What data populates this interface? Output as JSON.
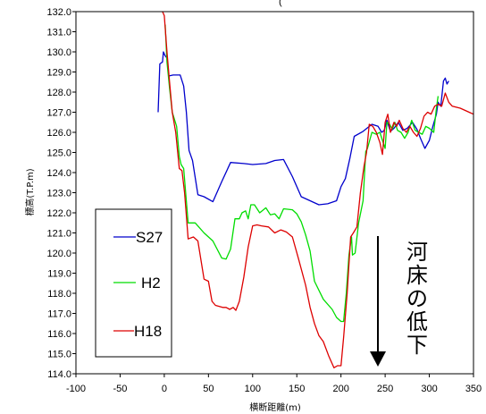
{
  "chart_data": {
    "type": "line",
    "title_fragment": "(",
    "xlabel": "横断距離(m)",
    "ylabel": "標高(T.P.m)",
    "xlim": [
      -100,
      350
    ],
    "ylim": [
      114.0,
      132.0
    ],
    "x_ticks": [
      "-100",
      "-50",
      "0",
      "50",
      "100",
      "150",
      "200",
      "250",
      "300",
      "350"
    ],
    "y_ticks": [
      "114.0",
      "115.0",
      "116.0",
      "117.0",
      "118.0",
      "119.0",
      "120.0",
      "121.0",
      "122.0",
      "123.0",
      "124.0",
      "125.0",
      "126.0",
      "127.0",
      "128.0",
      "129.0",
      "130.0",
      "131.0",
      "132.0"
    ],
    "legend_position": "left",
    "series": [
      {
        "name": "S27",
        "color": "#0000cc",
        "points": [
          [
            -7,
            127.0
          ],
          [
            -5,
            129.4
          ],
          [
            -2,
            129.5
          ],
          [
            -1,
            130.0
          ],
          [
            1,
            129.8
          ],
          [
            3,
            129.7
          ],
          [
            5,
            128.8
          ],
          [
            10,
            128.85
          ],
          [
            18,
            128.85
          ],
          [
            22,
            128.3
          ],
          [
            25,
            127.0
          ],
          [
            28,
            125.1
          ],
          [
            32,
            124.6
          ],
          [
            38,
            122.9
          ],
          [
            45,
            122.8
          ],
          [
            55,
            122.55
          ],
          [
            65,
            123.55
          ],
          [
            75,
            124.5
          ],
          [
            90,
            124.45
          ],
          [
            100,
            124.4
          ],
          [
            115,
            124.45
          ],
          [
            125,
            124.6
          ],
          [
            135,
            124.65
          ],
          [
            145,
            123.8
          ],
          [
            155,
            122.8
          ],
          [
            165,
            122.6
          ],
          [
            175,
            122.4
          ],
          [
            185,
            122.45
          ],
          [
            195,
            122.6
          ],
          [
            200,
            123.3
          ],
          [
            205,
            123.7
          ],
          [
            210,
            124.7
          ],
          [
            215,
            125.8
          ],
          [
            225,
            126.05
          ],
          [
            235,
            126.4
          ],
          [
            242,
            126.3
          ],
          [
            246,
            126.0
          ],
          [
            249,
            126.1
          ],
          [
            252,
            126.6
          ],
          [
            256,
            126.05
          ],
          [
            260,
            126.2
          ],
          [
            265,
            126.5
          ],
          [
            270,
            126.1
          ],
          [
            275,
            126.2
          ],
          [
            281,
            126.5
          ],
          [
            286,
            126.15
          ],
          [
            290,
            125.7
          ],
          [
            295,
            125.2
          ],
          [
            300,
            125.6
          ],
          [
            304,
            126.3
          ],
          [
            308,
            126.9
          ],
          [
            310,
            127.5
          ],
          [
            313,
            127.3
          ],
          [
            316,
            128.55
          ],
          [
            318,
            128.7
          ],
          [
            320,
            128.4
          ],
          [
            322,
            128.55
          ]
        ]
      },
      {
        "name": "H2",
        "color": "#00dd00",
        "points": [
          [
            1,
            131.35
          ],
          [
            3,
            129.5
          ],
          [
            6,
            128.2
          ],
          [
            9,
            127.0
          ],
          [
            14,
            126.3
          ],
          [
            17,
            124.8
          ],
          [
            19,
            124.4
          ],
          [
            22,
            124.2
          ],
          [
            27,
            121.5
          ],
          [
            35,
            121.5
          ],
          [
            45,
            121.0
          ],
          [
            55,
            120.6
          ],
          [
            65,
            119.75
          ],
          [
            70,
            119.7
          ],
          [
            75,
            120.2
          ],
          [
            80,
            121.7
          ],
          [
            85,
            121.7
          ],
          [
            88,
            122.0
          ],
          [
            92,
            122.1
          ],
          [
            95,
            121.7
          ],
          [
            98,
            122.4
          ],
          [
            102,
            122.4
          ],
          [
            108,
            122.0
          ],
          [
            115,
            122.25
          ],
          [
            120,
            121.9
          ],
          [
            125,
            121.95
          ],
          [
            130,
            121.7
          ],
          [
            135,
            122.2
          ],
          [
            145,
            122.15
          ],
          [
            150,
            121.95
          ],
          [
            155,
            121.55
          ],
          [
            160,
            120.9
          ],
          [
            165,
            120.1
          ],
          [
            170,
            118.6
          ],
          [
            180,
            117.7
          ],
          [
            190,
            117.2
          ],
          [
            195,
            116.8
          ],
          [
            200,
            116.6
          ],
          [
            203,
            116.6
          ],
          [
            206,
            118.0
          ],
          [
            209,
            119.9
          ],
          [
            212,
            120.8
          ],
          [
            213,
            119.9
          ],
          [
            216,
            120.0
          ],
          [
            220,
            121.5
          ],
          [
            225,
            122.6
          ],
          [
            228,
            125.05
          ],
          [
            230,
            125.2
          ],
          [
            235,
            126.0
          ],
          [
            240,
            125.9
          ],
          [
            244,
            126.0
          ],
          [
            247,
            125.6
          ],
          [
            250,
            125.2
          ],
          [
            252,
            126.5
          ],
          [
            255,
            126.4
          ],
          [
            258,
            126.15
          ],
          [
            261,
            126.5
          ],
          [
            264,
            126.1
          ],
          [
            268,
            126.0
          ],
          [
            272,
            125.7
          ],
          [
            276,
            126.0
          ],
          [
            280,
            126.6
          ],
          [
            284,
            126.1
          ],
          [
            288,
            126.0
          ],
          [
            292,
            125.9
          ],
          [
            296,
            126.3
          ],
          [
            300,
            126.2
          ],
          [
            305,
            126.0
          ],
          [
            308,
            127.2
          ],
          [
            310,
            127.8
          ]
        ]
      },
      {
        "name": "H18",
        "color": "#dd0000",
        "points": [
          [
            -2,
            132.0
          ],
          [
            0,
            131.8
          ],
          [
            3,
            130.0
          ],
          [
            6,
            128.5
          ],
          [
            9,
            127.0
          ],
          [
            13,
            126.0
          ],
          [
            17,
            124.2
          ],
          [
            20,
            124.1
          ],
          [
            23,
            123.0
          ],
          [
            27,
            120.7
          ],
          [
            33,
            120.8
          ],
          [
            38,
            120.6
          ],
          [
            45,
            118.7
          ],
          [
            50,
            118.6
          ],
          [
            54,
            117.6
          ],
          [
            58,
            117.4
          ],
          [
            62,
            117.35
          ],
          [
            66,
            117.3
          ],
          [
            70,
            117.3
          ],
          [
            74,
            117.2
          ],
          [
            78,
            117.3
          ],
          [
            81,
            117.15
          ],
          [
            85,
            117.6
          ],
          [
            90,
            118.8
          ],
          [
            95,
            120.3
          ],
          [
            100,
            121.35
          ],
          [
            105,
            121.4
          ],
          [
            110,
            121.35
          ],
          [
            118,
            121.3
          ],
          [
            125,
            121.0
          ],
          [
            132,
            121.15
          ],
          [
            138,
            121.05
          ],
          [
            145,
            120.8
          ],
          [
            152,
            119.7
          ],
          [
            160,
            118.4
          ],
          [
            165,
            117.3
          ],
          [
            170,
            116.5
          ],
          [
            175,
            115.9
          ],
          [
            180,
            115.6
          ],
          [
            186,
            114.9
          ],
          [
            192,
            114.3
          ],
          [
            196,
            114.4
          ],
          [
            200,
            114.4
          ],
          [
            203,
            115.8
          ],
          [
            207,
            118.0
          ],
          [
            211,
            120.8
          ],
          [
            214,
            121.0
          ],
          [
            218,
            121.3
          ],
          [
            222,
            123.0
          ],
          [
            226,
            124.3
          ],
          [
            229,
            125.0
          ],
          [
            232,
            126.4
          ],
          [
            236,
            126.3
          ],
          [
            240,
            126.0
          ],
          [
            244,
            125.5
          ],
          [
            247,
            124.9
          ],
          [
            250,
            126.5
          ],
          [
            253,
            126.9
          ],
          [
            256,
            126.0
          ],
          [
            260,
            126.5
          ],
          [
            263,
            126.3
          ],
          [
            266,
            126.6
          ],
          [
            270,
            126.2
          ],
          [
            274,
            126.0
          ],
          [
            278,
            126.3
          ],
          [
            282,
            126.0
          ],
          [
            286,
            125.8
          ],
          [
            290,
            126.2
          ],
          [
            294,
            126.8
          ],
          [
            298,
            127.0
          ],
          [
            302,
            126.9
          ],
          [
            306,
            127.3
          ],
          [
            310,
            127.4
          ],
          [
            314,
            127.3
          ],
          [
            318,
            127.95
          ],
          [
            322,
            127.5
          ],
          [
            326,
            127.3
          ],
          [
            335,
            127.2
          ],
          [
            345,
            127.0
          ],
          [
            350,
            126.9
          ]
        ]
      }
    ],
    "annotation": {
      "text": "河床の低下",
      "arrow": "down"
    }
  }
}
